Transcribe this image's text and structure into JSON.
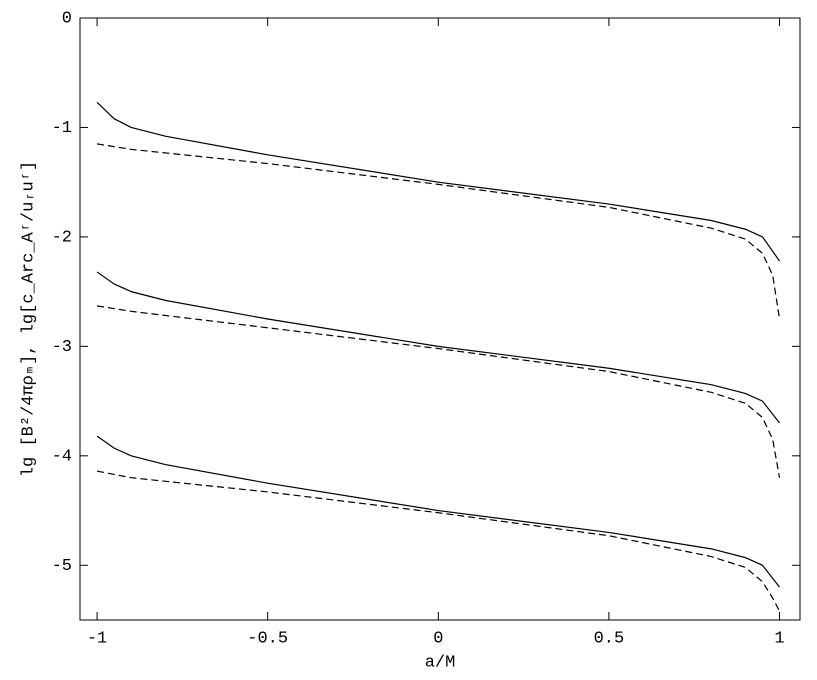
{
  "chart_data": {
    "type": "line",
    "xlabel": "a/M",
    "ylabel": "lg [B²/4πρₘ],  lg[c_Arc_Aʳ/uᵣuʳ]",
    "xlim": [
      -1.05,
      1.06
    ],
    "ylim": [
      -5.5,
      0
    ],
    "xticks": [
      -1,
      -0.5,
      0,
      0.5,
      1
    ],
    "yticks": [
      0,
      -1,
      -2,
      -3,
      -4,
      -5
    ],
    "series": [
      {
        "color": "#000000",
        "dashed": false,
        "x": [
          -1,
          -0.95,
          -0.9,
          -0.8,
          -0.5,
          0,
          0.5,
          0.8,
          0.9,
          0.95,
          1
        ],
        "values": [
          -0.77,
          -0.92,
          -1.0,
          -1.08,
          -1.25,
          -1.5,
          -1.7,
          -1.85,
          -1.93,
          -2.0,
          -2.22
        ]
      },
      {
        "color": "#000000",
        "dashed": true,
        "x": [
          -1,
          -0.9,
          -0.5,
          0,
          0.5,
          0.8,
          0.9,
          0.95,
          0.98,
          1
        ],
        "values": [
          -1.15,
          -1.2,
          -1.33,
          -1.52,
          -1.73,
          -1.92,
          -2.02,
          -2.15,
          -2.35,
          -2.75
        ]
      },
      {
        "color": "#000000",
        "dashed": false,
        "x": [
          -1,
          -0.95,
          -0.9,
          -0.8,
          -0.5,
          0,
          0.5,
          0.8,
          0.9,
          0.95,
          1
        ],
        "values": [
          -2.32,
          -2.43,
          -2.5,
          -2.58,
          -2.75,
          -3.0,
          -3.2,
          -3.35,
          -3.43,
          -3.5,
          -3.7
        ]
      },
      {
        "color": "#000000",
        "dashed": true,
        "x": [
          -1,
          -0.9,
          -0.5,
          0,
          0.5,
          0.8,
          0.9,
          0.95,
          0.98,
          1
        ],
        "values": [
          -2.63,
          -2.68,
          -2.83,
          -3.02,
          -3.23,
          -3.42,
          -3.52,
          -3.65,
          -3.85,
          -4.2
        ]
      },
      {
        "color": "#000000",
        "dashed": false,
        "x": [
          -1,
          -0.95,
          -0.9,
          -0.8,
          -0.5,
          0,
          0.5,
          0.8,
          0.9,
          0.95,
          1
        ],
        "values": [
          -3.82,
          -3.93,
          -4.0,
          -4.08,
          -4.25,
          -4.5,
          -4.7,
          -4.85,
          -4.93,
          -5.0,
          -5.2
        ]
      },
      {
        "color": "#000000",
        "dashed": true,
        "x": [
          -1,
          -0.9,
          -0.5,
          0,
          0.5,
          0.8,
          0.9,
          0.95,
          0.98,
          1
        ],
        "values": [
          -4.14,
          -4.2,
          -4.33,
          -4.52,
          -4.73,
          -4.92,
          -5.02,
          -5.15,
          -5.3,
          -5.42
        ]
      }
    ]
  }
}
